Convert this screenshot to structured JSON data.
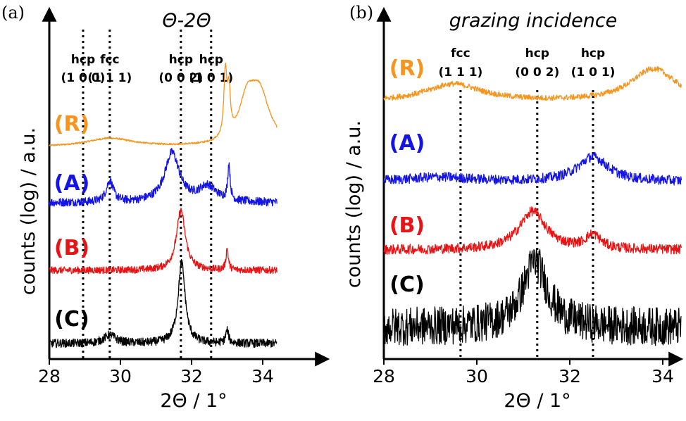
{
  "chart_data": [
    {
      "panel": "(a)",
      "type": "line",
      "title": "Θ-2Θ",
      "xlabel": "2Θ / 1°",
      "ylabel": "counts (log) / a.u.",
      "xlim": [
        28,
        34.4
      ],
      "xticks": [
        "28",
        "30",
        "32",
        "34"
      ],
      "xtick_values": [
        28,
        30,
        32,
        34
      ],
      "ylog": true,
      "reference_lines": [
        {
          "x": 28.95,
          "label_top": "hcp",
          "label_bottom": "(1 0 0)"
        },
        {
          "x": 29.7,
          "label_top": "fcc",
          "label_bottom": "(1 1 1)"
        },
        {
          "x": 31.7,
          "label_top": "hcp",
          "label_bottom": "(0 0 2)"
        },
        {
          "x": 32.55,
          "label_top": "hcp",
          "label_bottom": "(1 0 1)"
        }
      ],
      "series": [
        {
          "name": "(R)",
          "color": "#f7941d",
          "baseline": 0.0,
          "noise": 0.012,
          "peaks": [
            [
              29.7,
              0.12,
              0.8
            ],
            [
              32.95,
              0.9,
              0.05
            ],
            [
              33.05,
              0.6,
              0.05
            ],
            [
              33.9,
              0.75,
              0.35
            ],
            [
              33.55,
              0.5,
              0.25
            ]
          ]
        },
        {
          "name": "(A)",
          "color": "#1414e6",
          "baseline": 0.0,
          "noise": 0.06,
          "peaks": [
            [
              29.7,
              0.3,
              0.12
            ],
            [
              31.45,
              0.7,
              0.25
            ],
            [
              32.45,
              0.22,
              0.3
            ],
            [
              33.05,
              0.5,
              0.04
            ]
          ]
        },
        {
          "name": "(B)",
          "color": "#e61414",
          "baseline": 0.0,
          "noise": 0.05,
          "peaks": [
            [
              31.7,
              0.85,
              0.15
            ],
            [
              33.0,
              0.3,
              0.04
            ]
          ]
        },
        {
          "name": "(C)",
          "color": "#000000",
          "baseline": 0.0,
          "noise": 0.06,
          "peaks": [
            [
              29.7,
              0.12,
              0.2
            ],
            [
              31.72,
              1.15,
              0.12
            ],
            [
              33.0,
              0.18,
              0.05
            ]
          ]
        }
      ]
    },
    {
      "panel": "(b)",
      "type": "line",
      "title": "grazing incidence",
      "xlabel": "2Θ / 1°",
      "ylabel": "counts (log) / a.u.",
      "xlim": [
        28,
        34.4
      ],
      "xticks": [
        "28",
        "30",
        "32",
        "34"
      ],
      "xtick_values": [
        28,
        30,
        32,
        34
      ],
      "ylog": true,
      "reference_lines": [
        {
          "x": 29.65,
          "label_top": "fcc",
          "label_bottom": "(1 1 1)"
        },
        {
          "x": 31.3,
          "label_top": "hcp",
          "label_bottom": "(0 0 2)"
        },
        {
          "x": 32.5,
          "label_top": "hcp",
          "label_bottom": "(1 0 1)"
        }
      ],
      "series": [
        {
          "name": "(R)",
          "color": "#f7941d",
          "baseline": 0.0,
          "noise": 0.05,
          "peaks": [
            [
              29.5,
              0.32,
              0.75
            ],
            [
              33.8,
              0.6,
              0.6
            ]
          ]
        },
        {
          "name": "(A)",
          "color": "#1414e6",
          "baseline": 0.0,
          "noise": 0.09,
          "peaks": [
            [
              29.2,
              0.08,
              0.8
            ],
            [
              32.5,
              0.45,
              0.4
            ]
          ]
        },
        {
          "name": "(B)",
          "color": "#e61414",
          "baseline": 0.0,
          "noise": 0.09,
          "peaks": [
            [
              31.2,
              0.7,
              0.35
            ],
            [
              32.5,
              0.25,
              0.2
            ]
          ]
        },
        {
          "name": "(C)",
          "color": "#000000",
          "baseline": 0.0,
          "noise": 0.35,
          "peaks": [
            [
              31.25,
              1.2,
              0.32
            ]
          ]
        }
      ]
    }
  ]
}
